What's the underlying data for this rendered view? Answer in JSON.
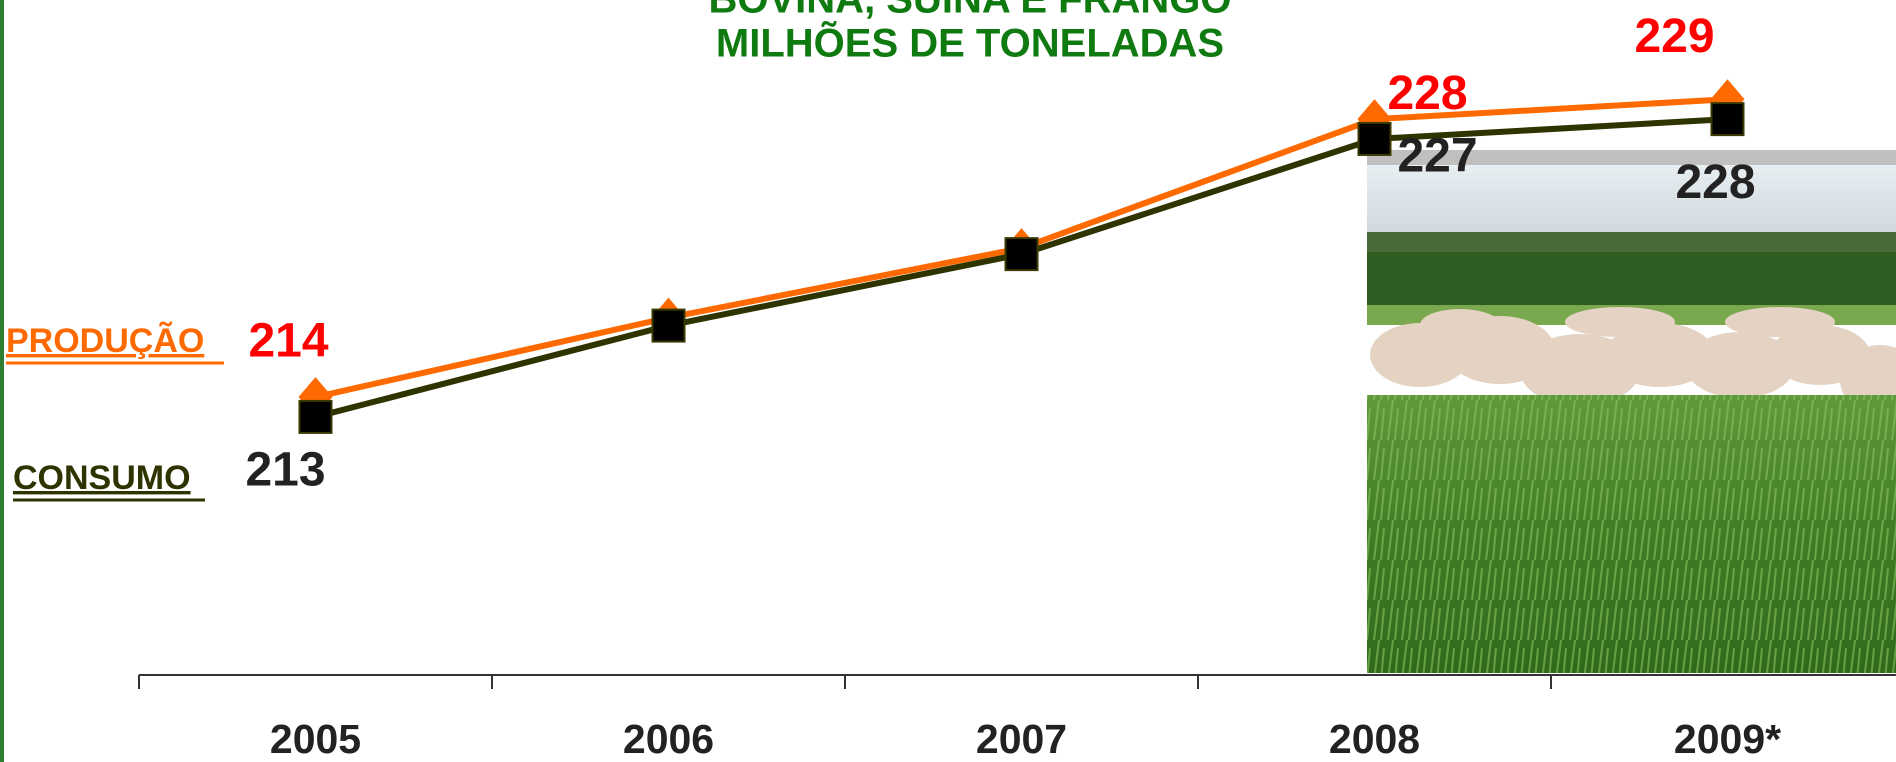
{
  "chart_data": {
    "type": "line",
    "title": "BOVINA, SUÍNA E FRANGO",
    "subtitle": "MILHÕES DE TONELADAS",
    "categories": [
      "2005",
      "2006",
      "2007",
      "2008",
      "2009*"
    ],
    "series": [
      {
        "name": "PRODUÇÃO",
        "color": "#ff6a00",
        "values": [
          214,
          218,
          221.5,
          228,
          229
        ],
        "value_labels": [
          "214",
          null,
          null,
          "228",
          "229"
        ],
        "label_color": "#ff0000"
      },
      {
        "name": "CONSUMO",
        "color": "#2e3300",
        "values": [
          213,
          217.6,
          221.2,
          227,
          228
        ],
        "value_labels": [
          "213",
          null,
          null,
          "227",
          "228"
        ],
        "label_color": "#222222"
      }
    ],
    "ylim": [
      200,
      234
    ]
  }
}
